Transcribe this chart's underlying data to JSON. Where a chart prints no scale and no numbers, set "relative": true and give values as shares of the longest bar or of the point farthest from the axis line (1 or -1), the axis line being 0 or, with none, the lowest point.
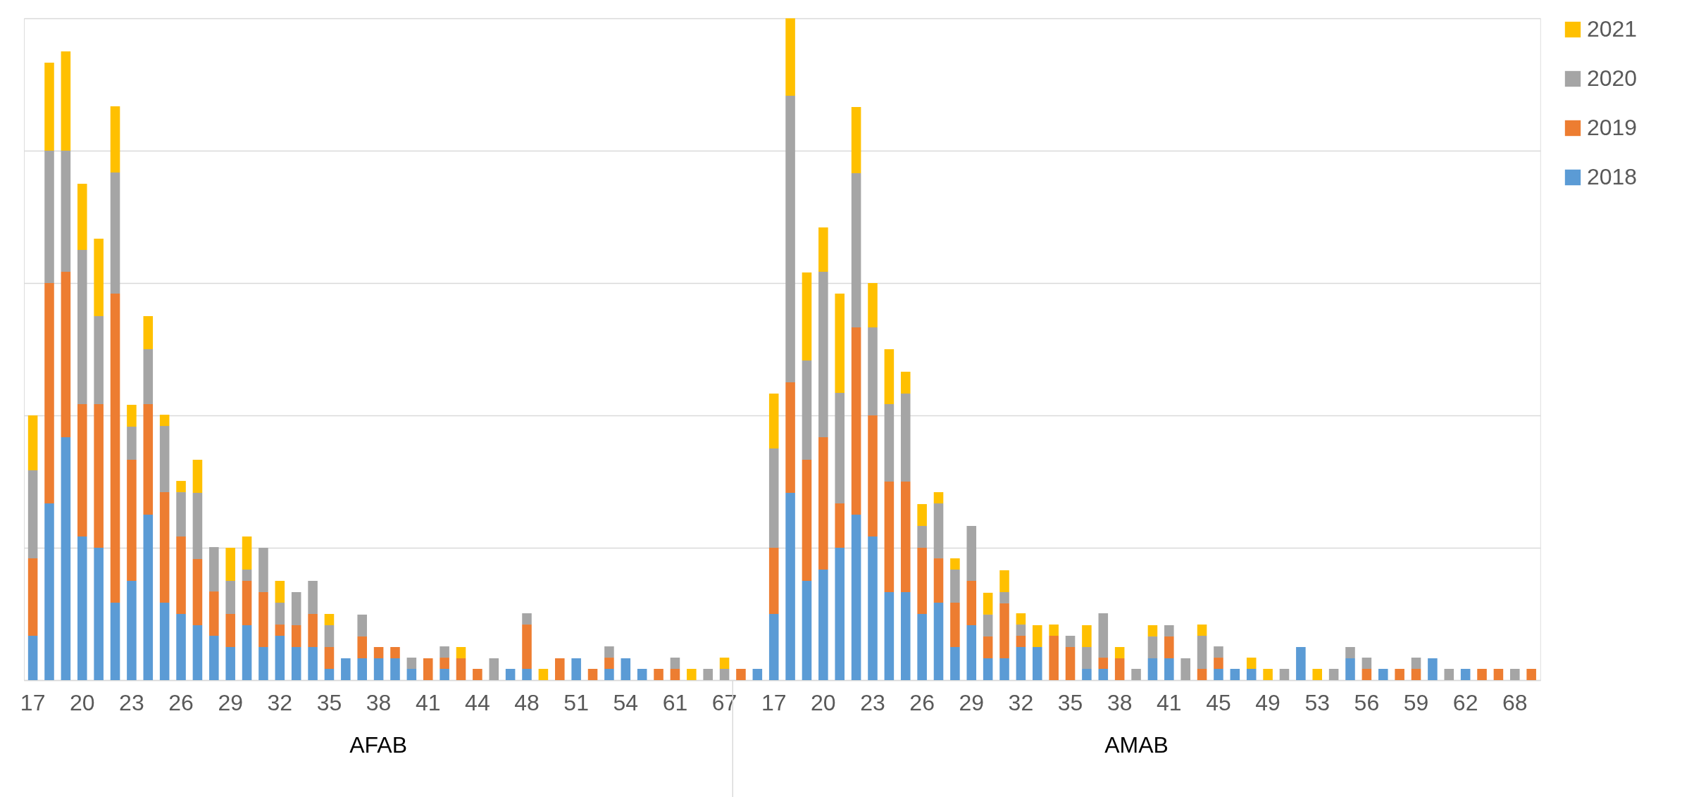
{
  "chart_data": {
    "type": "bar",
    "stacked": true,
    "relative": true,
    "grid": "y",
    "legend": "right",
    "annotations": [
      "AFAB",
      "AMAB"
    ],
    "categories": [
      "17",
      null,
      null,
      "20",
      null,
      null,
      "23",
      null,
      null,
      "26",
      null,
      null,
      "29",
      null,
      null,
      "32",
      null,
      null,
      "35",
      null,
      null,
      "38",
      null,
      null,
      "41",
      null,
      null,
      "44",
      null,
      null,
      "48",
      null,
      null,
      "51",
      null,
      null,
      "54",
      null,
      null,
      "61",
      null,
      null,
      "67",
      null,
      null,
      "17",
      null,
      null,
      "20",
      null,
      null,
      "23",
      null,
      null,
      "26",
      null,
      null,
      "29",
      null,
      null,
      "32",
      null,
      null,
      "35",
      null,
      null,
      "38",
      null,
      null,
      "41",
      null,
      null,
      "45",
      null,
      null,
      "49",
      null,
      null,
      "53",
      null,
      null,
      "56",
      null,
      null,
      "59",
      null,
      null,
      "62",
      null,
      null,
      "68",
      null
    ],
    "series": [
      {
        "name": "2018",
        "color": "#5b9bd5",
        "values": [
          0.067,
          0.267,
          0.367,
          0.217,
          0.2,
          0.117,
          0.15,
          0.25,
          0.117,
          0.1,
          0.083,
          0.067,
          0.05,
          0.083,
          0.05,
          0.067,
          0.05,
          0.05,
          0.017,
          0.033,
          0.033,
          0.033,
          0.033,
          0.017,
          null,
          0.017,
          null,
          null,
          null,
          0.017,
          0.017,
          null,
          null,
          0.033,
          null,
          0.017,
          0.033,
          0.017,
          null,
          null,
          null,
          null,
          null,
          null,
          0.017,
          0.1,
          0.283,
          0.15,
          0.167,
          0.2,
          0.25,
          0.217,
          0.133,
          0.133,
          0.1,
          0.117,
          0.05,
          0.083,
          0.033,
          0.033,
          0.05,
          0.05,
          null,
          null,
          0.017,
          0.017,
          null,
          null,
          0.033,
          0.033,
          null,
          null,
          0.017,
          0.017,
          0.017,
          null,
          null,
          0.05,
          null,
          null,
          0.033,
          null,
          0.017,
          null,
          null,
          0.033,
          null,
          0.017,
          null,
          null,
          null,
          null
        ]
      },
      {
        "name": "2019",
        "color": "#ed7d31",
        "values": [
          0.117,
          0.333,
          0.25,
          0.2,
          0.217,
          0.467,
          0.183,
          0.167,
          0.167,
          0.117,
          0.1,
          0.067,
          0.05,
          0.067,
          0.083,
          0.017,
          0.033,
          0.05,
          0.033,
          null,
          0.033,
          0.017,
          0.017,
          null,
          0.033,
          0.017,
          0.033,
          0.017,
          null,
          null,
          0.067,
          null,
          0.033,
          null,
          0.017,
          0.017,
          null,
          null,
          0.017,
          0.017,
          null,
          null,
          null,
          0.017,
          null,
          0.1,
          0.167,
          0.183,
          0.2,
          0.067,
          0.283,
          0.183,
          0.167,
          0.167,
          0.1,
          0.067,
          0.067,
          0.067,
          0.033,
          0.083,
          0.017,
          null,
          0.067,
          0.05,
          null,
          0.017,
          0.033,
          null,
          null,
          0.033,
          null,
          0.017,
          0.017,
          null,
          null,
          null,
          null,
          null,
          null,
          null,
          null,
          0.017,
          null,
          0.017,
          0.017,
          null,
          null,
          null,
          0.017,
          0.017,
          null,
          0.017
        ]
      },
      {
        "name": "2020",
        "color": "#a5a5a5",
        "values": [
          0.133,
          0.2,
          0.183,
          0.233,
          0.133,
          0.183,
          0.05,
          0.083,
          0.1,
          0.067,
          0.1,
          0.067,
          0.05,
          0.017,
          0.067,
          0.033,
          0.05,
          0.05,
          0.033,
          null,
          0.033,
          null,
          null,
          0.017,
          null,
          0.017,
          null,
          null,
          0.033,
          null,
          0.017,
          null,
          null,
          null,
          null,
          0.017,
          null,
          null,
          null,
          0.017,
          null,
          0.017,
          0.017,
          null,
          null,
          0.15,
          0.433,
          0.15,
          0.25,
          0.167,
          0.233,
          0.133,
          0.117,
          0.133,
          0.033,
          0.083,
          0.05,
          0.083,
          0.033,
          0.017,
          0.017,
          null,
          null,
          0.017,
          0.033,
          0.067,
          null,
          0.017,
          0.033,
          0.017,
          0.033,
          0.05,
          0.017,
          null,
          null,
          null,
          0.017,
          null,
          null,
          0.017,
          0.017,
          0.017,
          null,
          null,
          0.017,
          null,
          0.017,
          null,
          null,
          null,
          0.017,
          null
        ]
      },
      {
        "name": "2021",
        "color": "#ffc000",
        "values": [
          0.083,
          0.133,
          0.15,
          0.1,
          0.117,
          0.1,
          0.033,
          0.05,
          0.017,
          0.017,
          0.05,
          null,
          0.05,
          0.05,
          null,
          0.033,
          null,
          null,
          0.017,
          null,
          null,
          null,
          null,
          null,
          null,
          null,
          0.017,
          null,
          null,
          null,
          null,
          0.017,
          null,
          null,
          null,
          null,
          null,
          null,
          null,
          null,
          0.017,
          null,
          0.017,
          null,
          null,
          0.083,
          0.117,
          0.133,
          0.067,
          0.15,
          0.1,
          0.067,
          0.083,
          0.033,
          0.033,
          0.017,
          0.017,
          null,
          0.033,
          0.033,
          0.017,
          0.033,
          0.017,
          null,
          0.033,
          null,
          0.017,
          null,
          0.017,
          null,
          null,
          0.017,
          null,
          null,
          0.017,
          0.017,
          null,
          null,
          0.017,
          null,
          null,
          null,
          null,
          null,
          null,
          null,
          null,
          null,
          null,
          null,
          null,
          null
        ]
      }
    ]
  }
}
